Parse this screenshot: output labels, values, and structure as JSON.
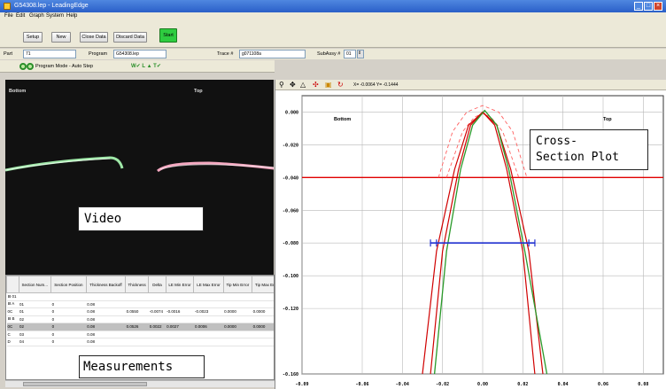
{
  "window": {
    "title": "G54308.lep - LeadingEdge",
    "controls": [
      "_",
      "□",
      "×"
    ]
  },
  "menu": [
    "File",
    "Edit",
    "Graph",
    "System",
    "Help"
  ],
  "toolbar": {
    "buttons": [
      "Setup",
      "New",
      "Close Data",
      "Discard Data"
    ],
    "start_label": "Start",
    "start_color": "#2ecc40"
  },
  "info": {
    "part_label": "Part",
    "part_value": "71",
    "program_label": "Program",
    "program_value": "G54308.lep",
    "trace_label": "Trace #",
    "trace_value": "g071108a",
    "subassy_label": "SubAssy #",
    "subassy_value": "01"
  },
  "mode": {
    "text": "Program Mode - Auto Step",
    "status": "W✔ L ▲ T✔"
  },
  "video": {
    "bottom_label": "Bottom",
    "top_label": "Top",
    "callout": "Video"
  },
  "measurements": {
    "callout": "Measurements",
    "columns": [
      "",
      "Section Num...",
      "Section Position",
      "Thickness Backoff",
      "Thickness",
      "Delta",
      "LE Min Error",
      "LE Max Error",
      "Tip Min Error",
      "Tip Max Error"
    ],
    "rows": [
      {
        "cells": [
          "⊟ 01",
          "",
          "",
          "",
          "",
          "",
          "",
          "",
          "",
          ""
        ],
        "sel": false
      },
      {
        "cells": [
          "⊟ A",
          "01",
          "0",
          "0.08",
          "",
          "",
          "",
          "",
          "",
          ""
        ],
        "sel": false
      },
      {
        "cells": [
          "0C",
          "01",
          "0",
          "0.08",
          "0.0550",
          "-0.0074",
          "-0.0016",
          "-0.0023",
          "0.0000",
          "0.0000"
        ],
        "sel": false
      },
      {
        "cells": [
          "⊟ B",
          "02",
          "0",
          "0.08",
          "",
          "",
          "",
          "",
          "",
          ""
        ],
        "sel": false
      },
      {
        "cells": [
          "0C",
          "02",
          "0",
          "0.08",
          "0.0526",
          "0.0022",
          "0.0027",
          "0.0006",
          "0.0000",
          "0.0000"
        ],
        "sel": true
      },
      {
        "cells": [
          "C",
          "03",
          "0",
          "0.08",
          "",
          "",
          "",
          "",
          "",
          ""
        ],
        "sel": false
      },
      {
        "cells": [
          "D",
          "04",
          "0",
          "0.08",
          "",
          "",
          "",
          "",
          "",
          ""
        ],
        "sel": false
      }
    ]
  },
  "plot": {
    "readout": "X= -0.0064  Y= -0.1444",
    "callout_line1": "Cross-",
    "callout_line2": "Section Plot",
    "bottom_label": "Bottom",
    "top_label": "Top",
    "tools": [
      "zoom-icon",
      "pan-icon",
      "triangle-icon",
      "move-icon",
      "image-icon",
      "refresh-icon"
    ]
  },
  "chart_data": {
    "type": "line",
    "title": "",
    "xlabel": "",
    "ylabel": "",
    "xlim": [
      -0.09,
      0.09
    ],
    "ylim": [
      -0.16,
      0.01
    ],
    "x_ticks": [
      "-0.09",
      "-0.06",
      "-0.04",
      "-0.02",
      "0.00",
      "0.02",
      "0.04",
      "0.06",
      "0.08"
    ],
    "y_ticks": [
      "0.000",
      "-0.020",
      "-0.040",
      "-0.060",
      "-0.080",
      "-0.100",
      "-0.120",
      "-0.160"
    ],
    "grid": true,
    "colors": {
      "nominal": "#d00000",
      "measured": "#2a9a2a",
      "tolerance": "#ff6060",
      "reference": "#e00000",
      "width": "#2030d0"
    },
    "reference_line_y": -0.04,
    "width_bar": {
      "y": -0.08,
      "x_points": [
        -0.026,
        -0.023,
        0.023,
        0.026
      ]
    },
    "series": [
      {
        "x": [
          -0.026,
          -0.02,
          -0.012,
          -0.006,
          0.0,
          0.006,
          0.012,
          0.02,
          0.026
        ],
        "y": [
          -0.16,
          -0.085,
          -0.035,
          -0.008,
          0.0,
          -0.008,
          -0.035,
          -0.085,
          -0.16
        ]
      },
      {
        "x": [
          -0.03,
          -0.023,
          -0.014,
          -0.007,
          0.0,
          0.007,
          0.014,
          0.023,
          0.03
        ],
        "y": [
          -0.16,
          -0.085,
          -0.035,
          -0.008,
          0.0,
          -0.008,
          -0.035,
          -0.085,
          -0.16
        ]
      },
      {
        "x": [
          -0.024,
          -0.018,
          -0.011,
          -0.005,
          0.001,
          0.007,
          0.013,
          0.021,
          0.032
        ],
        "y": [
          -0.16,
          -0.085,
          -0.035,
          -0.008,
          0.001,
          -0.008,
          -0.035,
          -0.085,
          -0.16
        ]
      }
    ],
    "tolerance_series": [
      {
        "x": [
          -0.022,
          -0.015,
          -0.008,
          0.0,
          0.008,
          0.015,
          0.022
        ],
        "y": [
          -0.04,
          -0.012,
          0.0,
          0.004,
          0.0,
          -0.012,
          -0.04
        ]
      },
      {
        "x": [
          -0.018,
          -0.01,
          -0.004,
          0.0,
          0.004,
          0.01,
          0.018
        ],
        "y": [
          -0.04,
          -0.012,
          -0.003,
          -0.001,
          -0.003,
          -0.012,
          -0.04
        ]
      }
    ]
  }
}
